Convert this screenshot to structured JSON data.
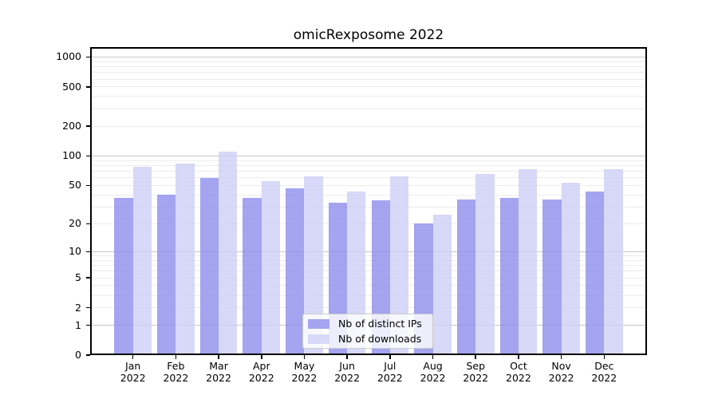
{
  "chart_data": {
    "type": "bar",
    "title": "omicRexposome 2022",
    "y_scale": "log1p",
    "grid": true,
    "categories": [
      "Jan",
      "Feb",
      "Mar",
      "Apr",
      "May",
      "Jun",
      "Jul",
      "Aug",
      "Sep",
      "Oct",
      "Nov",
      "Dec"
    ],
    "category_year": "2022",
    "series": [
      {
        "name": "Nb of distinct IPs",
        "key": "distinct-ips",
        "values": [
          37,
          40,
          60,
          37,
          47,
          33,
          35,
          20,
          36,
          37,
          36,
          43
        ]
      },
      {
        "name": "Nb of downloads",
        "key": "downloads",
        "values": [
          78,
          83,
          110,
          55,
          62,
          43,
          62,
          25,
          65,
          74,
          53,
          73
        ]
      }
    ],
    "yticks": [
      0,
      1,
      2,
      5,
      10,
      20,
      50,
      100,
      200,
      500,
      1000
    ],
    "ylim": [
      0,
      1259
    ],
    "legend_position": "lower center",
    "colors": {
      "bar_distinct_ips": "#a4a4f0",
      "bar_distinct_ips_rgba": "rgba(141,141,236,0.8)",
      "bar_downloads": "#d8d8f8",
      "bar_downloads_rgba": "rgba(206,206,246,0.8)",
      "grid_major": "#c8c8c8",
      "grid_minor": "#ececec",
      "spine": "#000000",
      "text": "#000000",
      "legend_background": "rgba(255,255,255,0.8)",
      "legend_border": "#cccccc"
    }
  }
}
